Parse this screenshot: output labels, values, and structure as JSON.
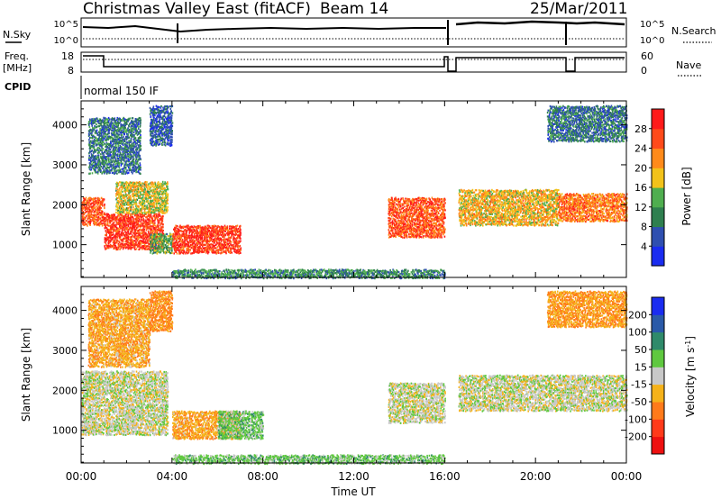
{
  "header": {
    "title": "Christmas Valley East (fitACF)",
    "beam": "Beam 14",
    "date": "25/Mar/2011"
  },
  "left_labels": {
    "nsky": "N.Sky",
    "freq": "Freq.",
    "freq_unit": "[MHz]",
    "cpid": "CPID"
  },
  "right_labels": {
    "nsearch": "N.Search",
    "nave": "Nave"
  },
  "noise_axis": {
    "left_ticks": [
      "10^5",
      "10^0"
    ],
    "right_ticks": [
      "10^5",
      "10^0"
    ]
  },
  "freq_axis": {
    "left_ticks": [
      "18",
      "8"
    ],
    "right_ticks": [
      "60",
      "0"
    ]
  },
  "cpid_text": "normal 150 IF",
  "time_axis": {
    "label": "Time UT",
    "ticks": [
      "00:00",
      "04:00",
      "08:00",
      "12:00",
      "16:00",
      "20:00",
      "00:00"
    ]
  },
  "range_axis": {
    "label": "Slant Range [km]",
    "ticks": [
      "1000",
      "2000",
      "3000",
      "4000"
    ]
  },
  "power_bar": {
    "label": "Power [dB]",
    "ticks": [
      "4",
      "8",
      "12",
      "16",
      "20",
      "24",
      "28"
    ],
    "colors": [
      "#1a2cf0",
      "#2f4fb0",
      "#2f7f4f",
      "#4fae4f",
      "#f2c21a",
      "#ff8a1a",
      "#ff4a1a",
      "#ff1a1a"
    ]
  },
  "velocity_bar": {
    "label": "Velocity [m s",
    "label_sup": "-1",
    "label_close": "]",
    "ticks": [
      "200",
      "100",
      "50",
      "15",
      "-15",
      "-50",
      "-100",
      "-200"
    ],
    "colors": [
      "#1a2cf0",
      "#2a5aa8",
      "#2f8a6a",
      "#5fc83f",
      "#c8c8c8",
      "#f5b21a",
      "#ff7a1a",
      "#ff3a1a",
      "#ee1010"
    ]
  },
  "chart_data": [
    {
      "type": "heatmap",
      "name": "Power",
      "xlabel": "Time UT",
      "ylabel": "Slant Range [km]",
      "xlim": [
        0,
        24
      ],
      "ylim": [
        180,
        4600
      ],
      "colorbar_label": "Power [dB]",
      "colorbar_range": [
        0,
        30
      ],
      "regions": [
        {
          "t0": 0.0,
          "t1": 1.0,
          "r0": 1500,
          "r1": 2200,
          "level": 24
        },
        {
          "t0": 0.3,
          "t1": 2.6,
          "r0": 2800,
          "r1": 4200,
          "level": 8
        },
        {
          "t0": 1.0,
          "t1": 3.6,
          "r0": 900,
          "r1": 1800,
          "level": 26
        },
        {
          "t0": 1.5,
          "t1": 3.8,
          "r0": 1800,
          "r1": 2600,
          "level": 16
        },
        {
          "t0": 3.0,
          "t1": 4.0,
          "r0": 3500,
          "r1": 4500,
          "level": 6
        },
        {
          "t0": 3.0,
          "t1": 4.0,
          "r0": 800,
          "r1": 1300,
          "level": 12
        },
        {
          "t0": 4.0,
          "t1": 7.0,
          "r0": 800,
          "r1": 1500,
          "level": 26
        },
        {
          "t0": 4.0,
          "t1": 16.0,
          "r0": 180,
          "r1": 400,
          "level": 10
        },
        {
          "t0": 13.5,
          "t1": 16.0,
          "r0": 1200,
          "r1": 2200,
          "level": 24
        },
        {
          "t0": 16.6,
          "t1": 21.0,
          "r0": 1500,
          "r1": 2400,
          "level": 18
        },
        {
          "t0": 21.0,
          "t1": 24.0,
          "r0": 1600,
          "r1": 2300,
          "level": 22
        },
        {
          "t0": 20.5,
          "t1": 24.0,
          "r0": 3600,
          "r1": 4500,
          "level": 8
        }
      ]
    },
    {
      "type": "heatmap",
      "name": "Velocity",
      "xlabel": "Time UT",
      "ylabel": "Slant Range [km]",
      "xlim": [
        0,
        24
      ],
      "ylim": [
        180,
        4600
      ],
      "colorbar_label": "Velocity [m s-1]",
      "colorbar_range": [
        -200,
        200
      ],
      "regions": [
        {
          "t0": 0.0,
          "t1": 3.8,
          "r0": 900,
          "r1": 2500,
          "level": 0
        },
        {
          "t0": 0.3,
          "t1": 3.0,
          "r0": 2600,
          "r1": 4300,
          "level": -40
        },
        {
          "t0": 3.0,
          "t1": 4.0,
          "r0": 3500,
          "r1": 4500,
          "level": -60
        },
        {
          "t0": 4.0,
          "t1": 7.0,
          "r0": 800,
          "r1": 1500,
          "level": -40
        },
        {
          "t0": 6.0,
          "t1": 8.0,
          "r0": 800,
          "r1": 1500,
          "level": 30
        },
        {
          "t0": 4.0,
          "t1": 16.0,
          "r0": 180,
          "r1": 400,
          "level": 30
        },
        {
          "t0": 13.5,
          "t1": 16.0,
          "r0": 1200,
          "r1": 2200,
          "level": 0
        },
        {
          "t0": 16.6,
          "t1": 24.0,
          "r0": 1500,
          "r1": 2400,
          "level": 0
        },
        {
          "t0": 20.5,
          "t1": 24.0,
          "r0": 3600,
          "r1": 4500,
          "level": -50
        }
      ]
    }
  ]
}
